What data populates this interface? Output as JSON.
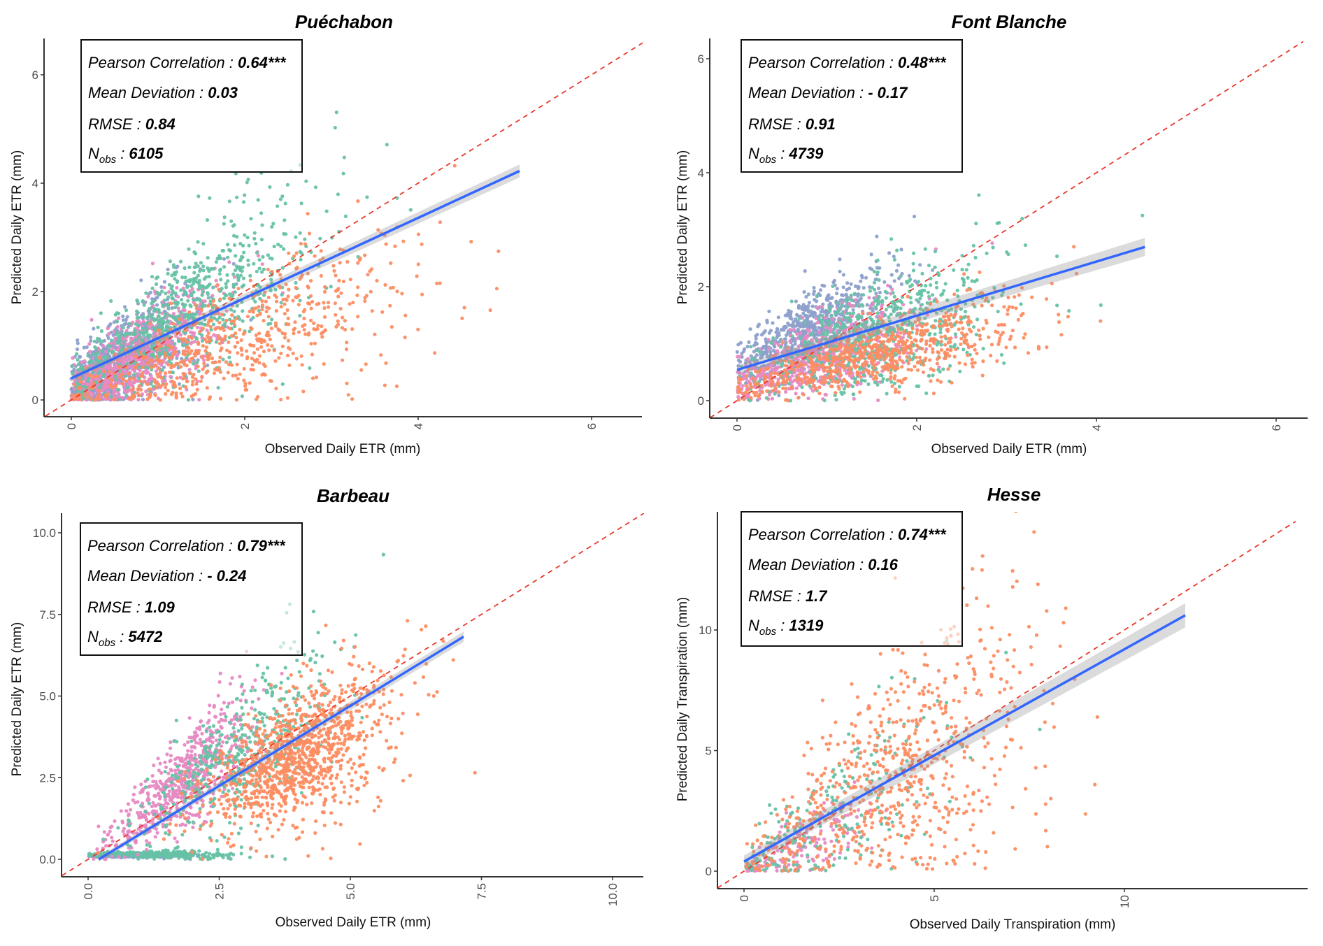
{
  "chart_data": [
    {
      "type": "scatter",
      "title": "Puéchabon",
      "xlabel": "Observed Daily ETR (mm)",
      "ylabel": "Predicted Daily ETR (mm)",
      "xlim": [
        -0.3,
        6.6
      ],
      "ylim": [
        -0.3,
        6.6
      ],
      "xticks": [
        0,
        2,
        4,
        6
      ],
      "xtick_labels": [
        "0",
        "2",
        "4",
        "6"
      ],
      "yticks": [
        0,
        2,
        4,
        6
      ],
      "ytick_labels": [
        "0",
        "2",
        "4",
        "6"
      ],
      "grid": false,
      "legend": "none",
      "stats": {
        "pearson_label": "Pearson Correlation : ",
        "pearson_value": "0.64***",
        "mean_dev_label": "Mean Deviation : ",
        "mean_dev_value": "0.03",
        "rmse_label": "RMSE : ",
        "rmse_value": "0.84",
        "nobs_label": "N",
        "nobs_sub": "obs",
        "nobs_sep": " : ",
        "nobs_value": "6105"
      },
      "identity_line": {
        "slope": 1,
        "intercept": 0
      },
      "regression": {
        "intercept": 0.4,
        "slope": 0.74,
        "x_range": [
          0,
          5.17
        ],
        "se_band": 0.06
      },
      "series_colors": {
        "group_a": "#8DA0CB",
        "group_b": "#E78AC3",
        "group_c": "#66C2A5",
        "group_d": "#FC8D62"
      },
      "clusters": [
        {
          "group": "group_a",
          "n": 900,
          "x_mean": 0.5,
          "x_sd": 0.45,
          "slope": 1.0,
          "y_base": 0.15,
          "y_sd": 0.7
        },
        {
          "group": "group_b",
          "n": 800,
          "x_mean": 0.7,
          "x_sd": 0.55,
          "slope": 0.9,
          "y_base": 0.1,
          "y_sd": 0.65
        },
        {
          "group": "group_c",
          "n": 700,
          "x_mean": 1.3,
          "x_sd": 0.8,
          "slope": 1.0,
          "y_base": 0.3,
          "y_sd": 0.8
        },
        {
          "group": "group_d",
          "n": 650,
          "x_mean": 1.9,
          "x_sd": 1.05,
          "slope": 0.55,
          "y_base": 0.05,
          "y_sd": 0.6
        }
      ]
    },
    {
      "type": "scatter",
      "title": "Font Blanche",
      "xlabel": "Observed Daily ETR (mm)",
      "ylabel": "Predicted Daily ETR (mm)",
      "xlim": [
        -0.3,
        6.3
      ],
      "ylim": [
        -0.3,
        6.3
      ],
      "xticks": [
        0,
        2,
        4,
        6
      ],
      "xtick_labels": [
        "0",
        "2",
        "4",
        "6"
      ],
      "yticks": [
        0,
        2,
        4,
        6
      ],
      "ytick_labels": [
        "0",
        "2",
        "4",
        "6"
      ],
      "grid": false,
      "legend": "none",
      "stats": {
        "pearson_label": "Pearson Correlation : ",
        "pearson_value": "0.48***",
        "mean_dev_label": "Mean Deviation : ",
        "mean_dev_value": "- 0.17",
        "rmse_label": "RMSE : ",
        "rmse_value": "0.91",
        "nobs_label": "N",
        "nobs_sub": "obs",
        "nobs_sep": " : ",
        "nobs_value": "4739"
      },
      "identity_line": {
        "slope": 1,
        "intercept": 0
      },
      "regression": {
        "intercept": 0.54,
        "slope": 0.475,
        "x_range": [
          0,
          4.54
        ],
        "se_band": 0.08
      },
      "series_colors": {
        "group_a": "#8DA0CB",
        "group_b": "#E78AC3",
        "group_c": "#66C2A5",
        "group_d": "#FC8D62"
      },
      "clusters": [
        {
          "group": "group_a",
          "n": 700,
          "x_mean": 0.8,
          "x_sd": 0.45,
          "slope": 0.8,
          "y_base": 0.6,
          "y_sd": 0.55
        },
        {
          "group": "group_b",
          "n": 650,
          "x_mean": 0.9,
          "x_sd": 0.6,
          "slope": 0.5,
          "y_base": 0.3,
          "y_sd": 0.5
        },
        {
          "group": "group_c",
          "n": 650,
          "x_mean": 1.6,
          "x_sd": 0.7,
          "slope": 0.55,
          "y_base": 0.35,
          "y_sd": 0.6
        },
        {
          "group": "group_d",
          "n": 700,
          "x_mean": 1.6,
          "x_sd": 0.85,
          "slope": 0.4,
          "y_base": 0.2,
          "y_sd": 0.35
        }
      ]
    },
    {
      "type": "scatter",
      "title": "Barbeau",
      "xlabel": "Observed Daily ETR (mm)",
      "ylabel": "Predicted Daily ETR (mm)",
      "xlim": [
        -0.5,
        10.6
      ],
      "ylim": [
        -0.5,
        10.6
      ],
      "xticks": [
        0,
        2.5,
        5,
        7.5,
        10
      ],
      "xtick_labels": [
        "0.0",
        "2.5",
        "5.0",
        "7.5",
        "10.0"
      ],
      "yticks": [
        0,
        2.5,
        5,
        7.5,
        10
      ],
      "ytick_labels": [
        "0.0",
        "2.5",
        "5.0",
        "7.5",
        "10.0"
      ],
      "grid": false,
      "legend": "none",
      "stats": {
        "pearson_label": "Pearson Correlation : ",
        "pearson_value": "0.79***",
        "mean_dev_label": "Mean Deviation : ",
        "mean_dev_value": "- 0.24",
        "rmse_label": "RMSE : ",
        "rmse_value": "1.09",
        "nobs_label": "N",
        "nobs_sub": "obs",
        "nobs_sep": " : ",
        "nobs_value": "5472"
      },
      "identity_line": {
        "slope": 1,
        "intercept": 0
      },
      "regression": {
        "intercept": -0.2,
        "slope": 0.98,
        "x_range": [
          0.2,
          7.16
        ],
        "se_band": 0.08
      },
      "series_colors": {
        "group_a": "#8DA0CB",
        "group_b": "#E78AC3",
        "group_c": "#66C2A5",
        "group_d": "#FC8D62"
      },
      "clusters": [
        {
          "group": "group_a",
          "n": 250,
          "x_mean": 0.8,
          "x_sd": 0.5,
          "slope": 0.0,
          "y_base": 0.12,
          "y_sd": 0.05
        },
        {
          "group": "group_c",
          "n": 300,
          "x_mean": 1.4,
          "x_sd": 0.7,
          "slope": 0.0,
          "y_base": 0.15,
          "y_sd": 0.08
        },
        {
          "group": "group_b",
          "n": 650,
          "x_mean": 1.8,
          "x_sd": 0.7,
          "slope": 1.35,
          "y_base": 0.0,
          "y_sd": 0.8
        },
        {
          "group": "group_c",
          "n": 450,
          "x_mean": 2.8,
          "x_sd": 0.9,
          "slope": 1.15,
          "y_base": 0.0,
          "y_sd": 0.9
        },
        {
          "group": "group_d",
          "n": 1100,
          "x_mean": 4.0,
          "x_sd": 0.95,
          "slope": 0.78,
          "y_base": 0.0,
          "y_sd": 0.7
        }
      ]
    },
    {
      "type": "scatter",
      "title": "Hesse",
      "xlabel": "Observed Daily Transpiration (mm)",
      "ylabel": "Predicted Daily Transpiration (mm)",
      "xlim": [
        -0.7,
        14.5
      ],
      "ylim": [
        -0.7,
        14.5
      ],
      "xticks": [
        0,
        5,
        10
      ],
      "xtick_labels": [
        "0",
        "5",
        "10"
      ],
      "yticks": [
        0,
        5,
        10
      ],
      "ytick_labels": [
        "0",
        "5",
        "10"
      ],
      "grid": false,
      "legend": "none",
      "stats": {
        "pearson_label": "Pearson Correlation : ",
        "pearson_value": "0.74***",
        "mean_dev_label": "Mean Deviation : ",
        "mean_dev_value": "0.16",
        "rmse_label": "RMSE : ",
        "rmse_value": "1.7",
        "nobs_label": "N",
        "nobs_sub": "obs",
        "nobs_sep": " : ",
        "nobs_value": "1319"
      },
      "identity_line": {
        "slope": 1,
        "intercept": 0
      },
      "regression": {
        "intercept": 0.4,
        "slope": 0.88,
        "x_range": [
          0,
          11.6
        ],
        "se_band": 0.25
      },
      "series_colors": {
        "group_a": "#8DA0CB",
        "group_b": "#E78AC3",
        "group_c": "#66C2A5",
        "group_d": "#FC8D62"
      },
      "clusters": [
        {
          "group": "group_b",
          "n": 160,
          "x_mean": 1.5,
          "x_sd": 1.1,
          "slope": 0.6,
          "y_base": 0.1,
          "y_sd": 0.8
        },
        {
          "group": "group_c",
          "n": 220,
          "x_mean": 2.3,
          "x_sd": 1.8,
          "slope": 0.85,
          "y_base": 0.2,
          "y_sd": 1.3
        },
        {
          "group": "group_d",
          "n": 700,
          "x_mean": 4.0,
          "x_sd": 2.0,
          "slope": 0.95,
          "y_base": 0.3,
          "y_sd": 1.7
        }
      ]
    }
  ]
}
